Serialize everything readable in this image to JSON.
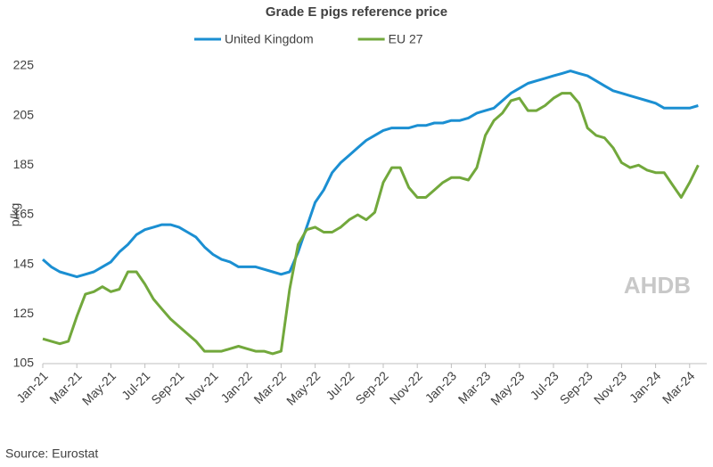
{
  "chart_data": {
    "type": "line",
    "title": "Grade E pigs reference price",
    "y_label": "p/kg",
    "source": "Source: Eurostat",
    "watermark": "AHDB",
    "categories": [
      "Jan-21",
      null,
      null,
      null,
      "Mar-21",
      null,
      null,
      null,
      "May-21",
      null,
      null,
      null,
      "Jul-21",
      null,
      null,
      null,
      "Sep-21",
      null,
      null,
      null,
      "Nov-21",
      null,
      null,
      null,
      "Jan-22",
      null,
      null,
      null,
      "Mar-22",
      null,
      null,
      null,
      "May-22",
      null,
      null,
      null,
      "Jul-22",
      null,
      null,
      null,
      "Sep-22",
      null,
      null,
      null,
      "Nov-22",
      null,
      null,
      null,
      "Jan-23",
      null,
      null,
      null,
      "Mar-23",
      null,
      null,
      null,
      "May-23",
      null,
      null,
      null,
      "Jul-23",
      null,
      null,
      null,
      "Sep-23",
      null,
      null,
      null,
      "Nov-23",
      null,
      null,
      null,
      "Jan-24",
      null,
      null,
      null,
      "Mar-24",
      null
    ],
    "series": [
      {
        "name": "United Kingdom",
        "color": "#1b8fd2",
        "values": [
          147,
          144,
          142,
          141,
          140,
          141,
          142,
          144,
          146,
          150,
          153,
          157,
          159,
          160,
          161,
          161,
          160,
          158,
          156,
          152,
          149,
          147,
          146,
          144,
          144,
          144,
          143,
          142,
          141,
          142,
          150,
          160,
          170,
          175,
          182,
          186,
          189,
          192,
          195,
          197,
          199,
          200,
          200,
          200,
          201,
          201,
          202,
          202,
          203,
          203,
          204,
          206,
          207,
          208,
          211,
          214,
          216,
          218,
          219,
          220,
          221,
          222,
          223,
          222,
          221,
          219,
          217,
          215,
          214,
          213,
          212,
          211,
          210,
          208,
          208,
          208,
          208,
          209
        ]
      },
      {
        "name": "EU 27",
        "color": "#72a83c",
        "values": [
          115,
          114,
          113,
          114,
          124,
          133,
          134,
          136,
          134,
          135,
          142,
          142,
          137,
          131,
          127,
          123,
          120,
          117,
          114,
          110,
          110,
          110,
          111,
          112,
          111,
          110,
          110,
          109,
          110,
          135,
          153,
          159,
          160,
          158,
          158,
          160,
          163,
          165,
          163,
          166,
          178,
          184,
          184,
          176,
          172,
          172,
          175,
          178,
          180,
          180,
          179,
          184,
          197,
          203,
          206,
          211,
          212,
          207,
          207,
          209,
          212,
          214,
          214,
          210,
          200,
          197,
          196,
          192,
          186,
          184,
          185,
          183,
          182,
          182,
          177,
          172,
          178,
          185
        ]
      }
    ],
    "ylim": [
      105,
      225
    ],
    "yticks": [
      105,
      125,
      145,
      165,
      185,
      205,
      225
    ],
    "grid": false,
    "legend": "top"
  }
}
